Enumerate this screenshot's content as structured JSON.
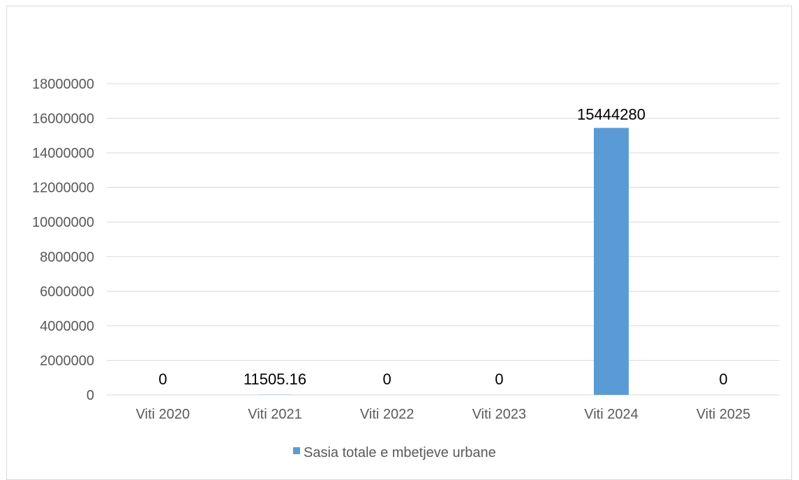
{
  "chart_data": {
    "type": "bar",
    "title": "",
    "xlabel": "",
    "ylabel": "",
    "categories": [
      "Viti 2020",
      "Viti 2021",
      "Viti 2022",
      "Viti 2023",
      "Viti 2024",
      "Viti 2025"
    ],
    "series": [
      {
        "name": "Sasia totale e mbetjeve urbane",
        "values": [
          0,
          11505.16,
          0,
          0,
          15444280,
          0
        ],
        "data_labels": [
          "0",
          "11505.16",
          "0",
          "0",
          "15444280",
          "0"
        ],
        "color": "#5B9BD5"
      }
    ],
    "ylim": [
      0,
      18000000
    ],
    "yticks": [
      "0",
      "2000000",
      "4000000",
      "6000000",
      "8000000",
      "10000000",
      "12000000",
      "14000000",
      "16000000",
      "18000000"
    ],
    "grid": "horizontal",
    "legend": "bottom"
  }
}
